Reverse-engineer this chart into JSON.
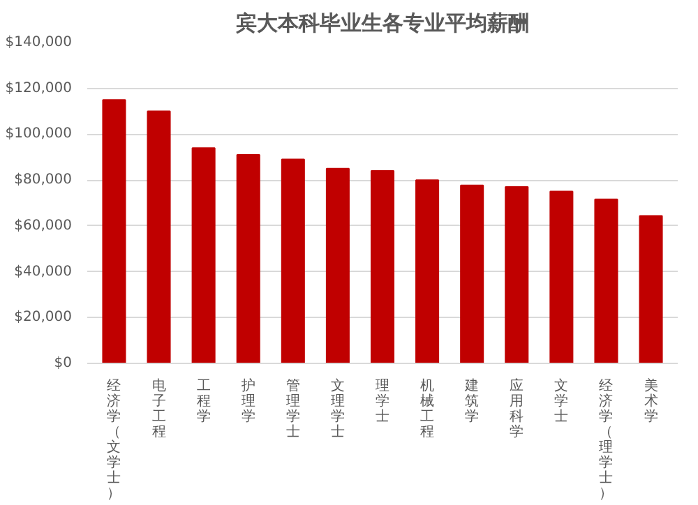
{
  "chart_data": {
    "type": "bar",
    "title": "宾大本科毕业生各专业平均薪酬",
    "categories": [
      "经济学（文学士）",
      "电子工程",
      "工程学",
      "护理学",
      "管理学士",
      "文理学士",
      "理学士",
      "机械工程",
      "建筑学",
      "应用科学",
      "文学士",
      "经济学（理学士）",
      "美术学"
    ],
    "values": [
      115000,
      110000,
      94000,
      91000,
      89000,
      85000,
      84000,
      80000,
      77700,
      77000,
      75000,
      71600,
      64400
    ],
    "color": "#c00000",
    "ylim": [
      0,
      140000
    ],
    "yticks": [
      {
        "value": 0,
        "label": "$0"
      },
      {
        "value": 20000,
        "label": "$20,000"
      },
      {
        "value": 40000,
        "label": "$40,000"
      },
      {
        "value": 60000,
        "label": "$60,000"
      },
      {
        "value": 80000,
        "label": "$80,000"
      },
      {
        "value": 100000,
        "label": "$100,000"
      },
      {
        "value": 120000,
        "label": "$120,000"
      },
      {
        "value": 140000,
        "label": "$140,000"
      }
    ],
    "grid": "y"
  }
}
